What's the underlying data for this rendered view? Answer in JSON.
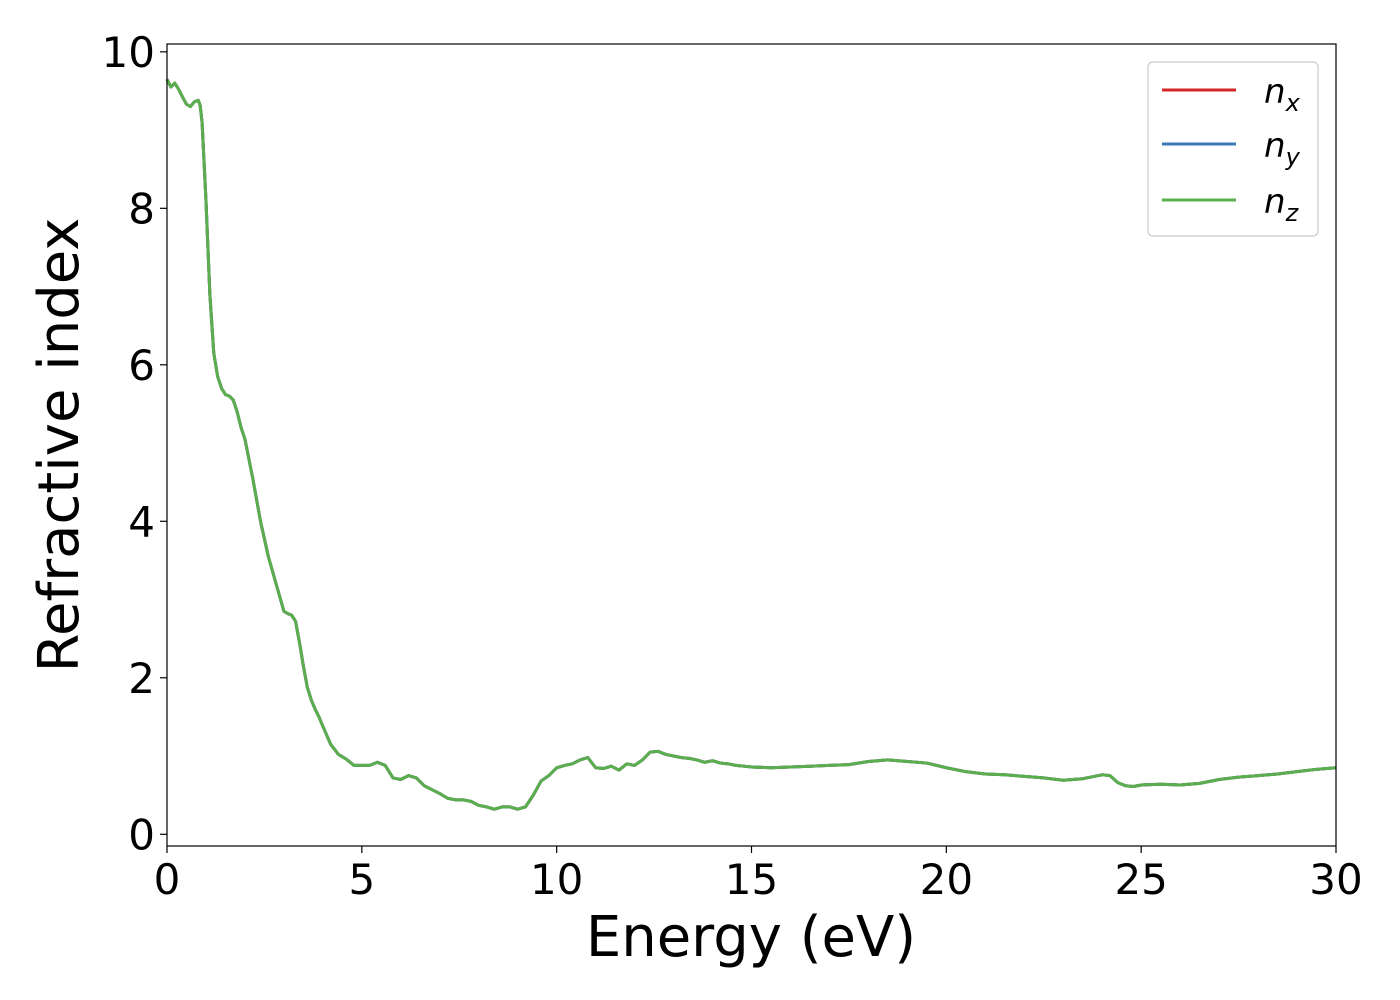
{
  "chart_data": {
    "type": "line",
    "title": "",
    "xlabel": "Energy (eV)",
    "ylabel": "Refractive index",
    "xlim": [
      0,
      30
    ],
    "ylim": [
      -0.15,
      10.1
    ],
    "xticks": [
      0,
      5,
      10,
      15,
      20,
      25,
      30
    ],
    "yticks": [
      0,
      2,
      4,
      6,
      8,
      10
    ],
    "grid": false,
    "legend_position": "top-right",
    "colors": {
      "n_x": "#d62728",
      "n_y": "#3a78b8",
      "n_z": "#5aae4e"
    },
    "legend": [
      {
        "base": "n",
        "sub": "x",
        "color": "#d62728"
      },
      {
        "base": "n",
        "sub": "y",
        "color": "#3a78b8"
      },
      {
        "base": "n",
        "sub": "z",
        "color": "#5aae4e"
      }
    ],
    "x": [
      0,
      0.1,
      0.2,
      0.3,
      0.4,
      0.5,
      0.6,
      0.7,
      0.8,
      0.85,
      0.9,
      1.0,
      1.1,
      1.2,
      1.3,
      1.4,
      1.5,
      1.6,
      1.7,
      1.8,
      1.9,
      2.0,
      2.2,
      2.4,
      2.6,
      2.8,
      3.0,
      3.1,
      3.2,
      3.3,
      3.4,
      3.5,
      3.6,
      3.7,
      3.8,
      3.9,
      4.0,
      4.2,
      4.4,
      4.6,
      4.8,
      5.0,
      5.2,
      5.4,
      5.6,
      5.8,
      6.0,
      6.2,
      6.4,
      6.6,
      6.8,
      7.0,
      7.2,
      7.4,
      7.6,
      7.8,
      8.0,
      8.2,
      8.4,
      8.6,
      8.8,
      9.0,
      9.2,
      9.4,
      9.6,
      9.8,
      10.0,
      10.2,
      10.4,
      10.6,
      10.8,
      11.0,
      11.2,
      11.4,
      11.6,
      11.8,
      12.0,
      12.2,
      12.4,
      12.6,
      12.8,
      13.0,
      13.2,
      13.4,
      13.6,
      13.8,
      14.0,
      14.2,
      14.4,
      14.6,
      14.8,
      15.0,
      15.5,
      16.0,
      16.5,
      17.0,
      17.5,
      18.0,
      18.5,
      19.0,
      19.5,
      20.0,
      20.5,
      21.0,
      21.5,
      22.0,
      22.5,
      23.0,
      23.5,
      24.0,
      24.2,
      24.4,
      24.6,
      24.8,
      25.0,
      25.5,
      26.0,
      26.5,
      27.0,
      27.5,
      28.0,
      28.5,
      29.0,
      29.5,
      30.0
    ],
    "series": [
      {
        "name": "n_x",
        "values": [
          9.65,
          9.55,
          9.6,
          9.52,
          9.42,
          9.33,
          9.3,
          9.36,
          9.38,
          9.32,
          9.1,
          8.1,
          6.9,
          6.15,
          5.85,
          5.7,
          5.62,
          5.6,
          5.55,
          5.4,
          5.2,
          5.05,
          4.55,
          4.0,
          3.55,
          3.2,
          2.85,
          2.82,
          2.8,
          2.72,
          2.45,
          2.15,
          1.88,
          1.72,
          1.6,
          1.5,
          1.38,
          1.15,
          1.02,
          0.96,
          0.88,
          0.88,
          0.88,
          0.92,
          0.88,
          0.72,
          0.7,
          0.75,
          0.72,
          0.62,
          0.57,
          0.52,
          0.46,
          0.44,
          0.44,
          0.42,
          0.37,
          0.35,
          0.32,
          0.35,
          0.35,
          0.32,
          0.35,
          0.5,
          0.68,
          0.75,
          0.85,
          0.88,
          0.9,
          0.95,
          0.98,
          0.85,
          0.84,
          0.87,
          0.82,
          0.9,
          0.88,
          0.95,
          1.05,
          1.06,
          1.02,
          1.0,
          0.98,
          0.97,
          0.95,
          0.92,
          0.94,
          0.91,
          0.9,
          0.88,
          0.87,
          0.86,
          0.85,
          0.86,
          0.87,
          0.88,
          0.89,
          0.93,
          0.95,
          0.93,
          0.91,
          0.85,
          0.8,
          0.77,
          0.76,
          0.74,
          0.72,
          0.69,
          0.71,
          0.76,
          0.75,
          0.66,
          0.62,
          0.61,
          0.63,
          0.64,
          0.63,
          0.65,
          0.7,
          0.73,
          0.75,
          0.77,
          0.8,
          0.83,
          0.85
        ],
        "color": "#d62728"
      },
      {
        "name": "n_y",
        "values": [
          9.65,
          9.55,
          9.6,
          9.52,
          9.42,
          9.33,
          9.3,
          9.36,
          9.38,
          9.32,
          9.1,
          8.1,
          6.9,
          6.15,
          5.85,
          5.7,
          5.62,
          5.6,
          5.55,
          5.4,
          5.2,
          5.05,
          4.55,
          4.0,
          3.55,
          3.2,
          2.85,
          2.82,
          2.8,
          2.72,
          2.45,
          2.15,
          1.88,
          1.72,
          1.6,
          1.5,
          1.38,
          1.15,
          1.02,
          0.96,
          0.88,
          0.88,
          0.88,
          0.92,
          0.88,
          0.72,
          0.7,
          0.75,
          0.72,
          0.62,
          0.57,
          0.52,
          0.46,
          0.44,
          0.44,
          0.42,
          0.37,
          0.35,
          0.32,
          0.35,
          0.35,
          0.32,
          0.35,
          0.5,
          0.68,
          0.75,
          0.85,
          0.88,
          0.9,
          0.95,
          0.98,
          0.85,
          0.84,
          0.87,
          0.82,
          0.9,
          0.88,
          0.95,
          1.05,
          1.06,
          1.02,
          1.0,
          0.98,
          0.97,
          0.95,
          0.92,
          0.94,
          0.91,
          0.9,
          0.88,
          0.87,
          0.86,
          0.85,
          0.86,
          0.87,
          0.88,
          0.89,
          0.93,
          0.95,
          0.93,
          0.91,
          0.85,
          0.8,
          0.77,
          0.76,
          0.74,
          0.72,
          0.69,
          0.71,
          0.76,
          0.75,
          0.66,
          0.62,
          0.61,
          0.63,
          0.64,
          0.63,
          0.65,
          0.7,
          0.73,
          0.75,
          0.77,
          0.8,
          0.83,
          0.85
        ],
        "color": "#3a78b8"
      },
      {
        "name": "n_z",
        "values": [
          9.65,
          9.55,
          9.6,
          9.52,
          9.42,
          9.33,
          9.3,
          9.36,
          9.38,
          9.32,
          9.1,
          8.1,
          6.9,
          6.15,
          5.85,
          5.7,
          5.62,
          5.6,
          5.55,
          5.4,
          5.2,
          5.05,
          4.55,
          4.0,
          3.55,
          3.2,
          2.85,
          2.82,
          2.8,
          2.72,
          2.45,
          2.15,
          1.88,
          1.72,
          1.6,
          1.5,
          1.38,
          1.15,
          1.02,
          0.96,
          0.88,
          0.88,
          0.88,
          0.92,
          0.88,
          0.72,
          0.7,
          0.75,
          0.72,
          0.62,
          0.57,
          0.52,
          0.46,
          0.44,
          0.44,
          0.42,
          0.37,
          0.35,
          0.32,
          0.35,
          0.35,
          0.32,
          0.35,
          0.5,
          0.68,
          0.75,
          0.85,
          0.88,
          0.9,
          0.95,
          0.98,
          0.85,
          0.84,
          0.87,
          0.82,
          0.9,
          0.88,
          0.95,
          1.05,
          1.06,
          1.02,
          1.0,
          0.98,
          0.97,
          0.95,
          0.92,
          0.94,
          0.91,
          0.9,
          0.88,
          0.87,
          0.86,
          0.85,
          0.86,
          0.87,
          0.88,
          0.89,
          0.93,
          0.95,
          0.93,
          0.91,
          0.85,
          0.8,
          0.77,
          0.76,
          0.74,
          0.72,
          0.69,
          0.71,
          0.76,
          0.75,
          0.66,
          0.62,
          0.61,
          0.63,
          0.64,
          0.63,
          0.65,
          0.7,
          0.73,
          0.75,
          0.77,
          0.8,
          0.83,
          0.85
        ],
        "color": "#5aae4e"
      }
    ]
  }
}
